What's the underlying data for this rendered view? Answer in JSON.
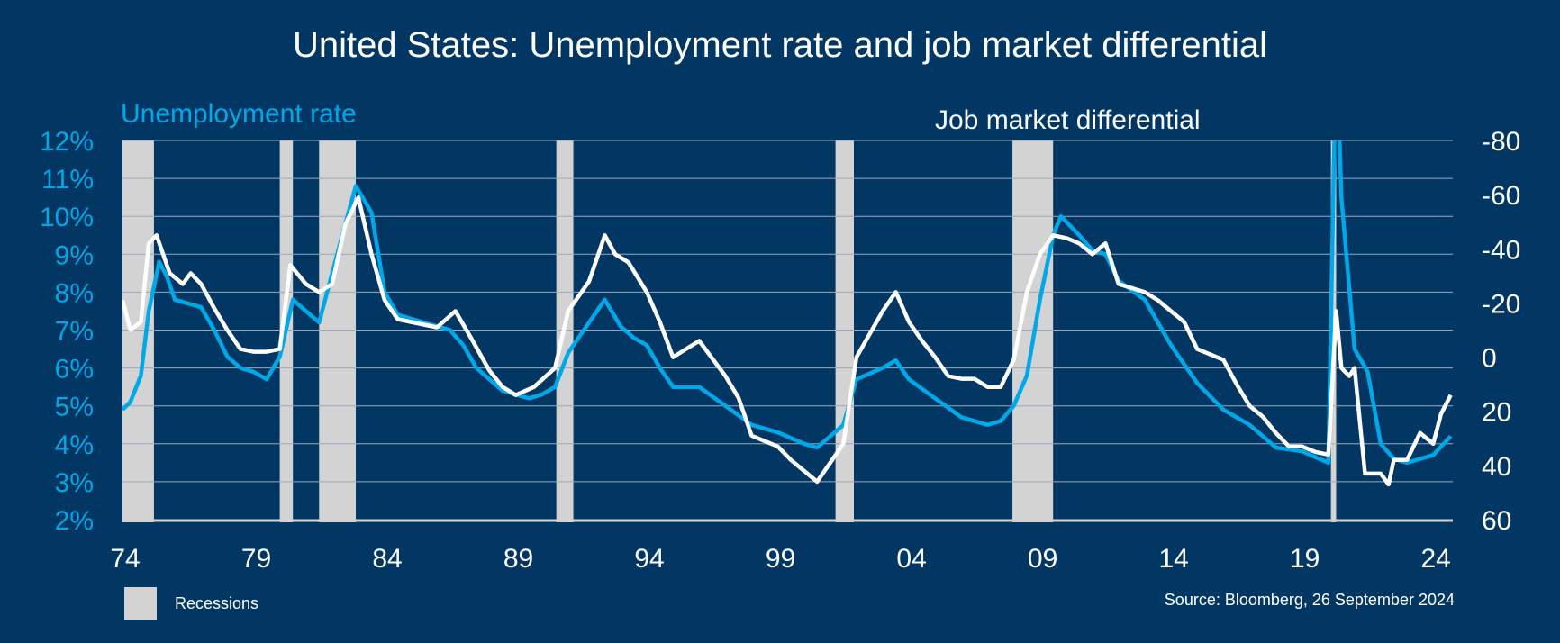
{
  "chart_data": {
    "type": "line",
    "title": "United States: Unemployment rate and job market differential",
    "left_axis": {
      "label": "Unemployment rate",
      "ylim": [
        2,
        12
      ],
      "ticks": [
        "12%",
        "11%",
        "10%",
        "9%",
        "8%",
        "7%",
        "6%",
        "5%",
        "4%",
        "3%",
        "2%"
      ],
      "tick_values": [
        12,
        11,
        10,
        9,
        8,
        7,
        6,
        5,
        4,
        3,
        2
      ]
    },
    "right_axis": {
      "label": "Job market differential",
      "ylim": [
        -80,
        60
      ],
      "inverted": true,
      "ticks": [
        "-80",
        "-60",
        "-40",
        "-20",
        "0",
        "20",
        "40",
        "60"
      ],
      "tick_values": [
        -80,
        -60,
        -40,
        -20,
        0,
        20,
        40,
        60
      ]
    },
    "x_axis": {
      "xlim": [
        1974,
        2024.75
      ],
      "ticks": [
        "74",
        "79",
        "84",
        "89",
        "94",
        "99",
        "04",
        "09",
        "14",
        "19",
        "24"
      ],
      "tick_values": [
        1974,
        1979,
        1984,
        1989,
        1994,
        1999,
        2004,
        2009,
        2014,
        2019,
        2024
      ]
    },
    "grid": true,
    "recessions": [
      [
        1974,
        1975.2
      ],
      [
        1980.0,
        1980.5
      ],
      [
        1981.5,
        1982.9
      ],
      [
        1990.55,
        1991.2
      ],
      [
        2001.2,
        2001.9
      ],
      [
        2007.95,
        2009.5
      ],
      [
        2020.1,
        2020.3
      ]
    ],
    "series": [
      {
        "name": "Unemployment rate",
        "axis": "left",
        "color": "#00a8e8",
        "x": [
          1974.0,
          1974.3,
          1974.7,
          1975.0,
          1975.4,
          1975.7,
          1976.0,
          1976.5,
          1977.0,
          1977.5,
          1978.0,
          1978.5,
          1979.0,
          1979.5,
          1980.0,
          1980.5,
          1981.0,
          1981.5,
          1982.0,
          1982.5,
          1982.9,
          1983.5,
          1984.0,
          1984.5,
          1985.5,
          1986.5,
          1987.0,
          1987.5,
          1988.0,
          1988.5,
          1989.0,
          1989.5,
          1990.0,
          1990.5,
          1991.0,
          1991.5,
          1992.4,
          1993.0,
          1993.5,
          1994.0,
          1994.5,
          1995.0,
          1996.0,
          1997.0,
          1998.0,
          1999.0,
          2000.0,
          2000.5,
          2001.0,
          2001.5,
          2002.0,
          2003.0,
          2003.5,
          2004.0,
          2005.0,
          2006.0,
          2007.0,
          2007.5,
          2008.0,
          2008.5,
          2009.0,
          2009.5,
          2009.8,
          2010.5,
          2011.0,
          2011.5,
          2012.0,
          2013.0,
          2014.0,
          2015.0,
          2016.0,
          2017.0,
          2018.0,
          2019.0,
          2020.0,
          2020.3,
          2020.5,
          2021.0,
          2021.5,
          2022.0,
          2022.5,
          2023.0,
          2023.5,
          2024.0,
          2024.67
        ],
        "values": [
          4.9,
          5.1,
          5.8,
          7.5,
          8.8,
          8.4,
          7.8,
          7.7,
          7.6,
          7.0,
          6.3,
          6.0,
          5.9,
          5.7,
          6.3,
          7.8,
          7.5,
          7.2,
          8.5,
          9.8,
          10.8,
          10.1,
          8.0,
          7.4,
          7.2,
          7.0,
          6.6,
          6.0,
          5.7,
          5.4,
          5.3,
          5.2,
          5.3,
          5.5,
          6.4,
          6.9,
          7.8,
          7.1,
          6.8,
          6.6,
          6.0,
          5.5,
          5.5,
          5.0,
          4.5,
          4.3,
          4.0,
          3.9,
          4.2,
          4.5,
          5.7,
          6.0,
          6.2,
          5.7,
          5.2,
          4.7,
          4.5,
          4.6,
          5.0,
          5.8,
          7.8,
          9.5,
          10.0,
          9.5,
          9.1,
          9.0,
          8.3,
          7.8,
          6.6,
          5.6,
          4.9,
          4.5,
          3.9,
          3.8,
          3.5,
          14.7,
          10.5,
          6.5,
          5.9,
          4.0,
          3.6,
          3.5,
          3.6,
          3.7,
          4.2
        ]
      },
      {
        "name": "Job market differential",
        "axis": "right",
        "color": "#ffffff",
        "x": [
          1974.0,
          1974.3,
          1974.7,
          1975.0,
          1975.3,
          1975.8,
          1976.3,
          1976.6,
          1977.0,
          1977.5,
          1978.0,
          1978.5,
          1979.0,
          1979.5,
          1980.0,
          1980.4,
          1981.0,
          1981.5,
          1982.0,
          1982.5,
          1983.0,
          1983.5,
          1984.0,
          1984.5,
          1985.0,
          1986.0,
          1986.7,
          1987.3,
          1988.0,
          1988.5,
          1989.0,
          1989.7,
          1990.5,
          1991.0,
          1991.8,
          1992.4,
          1992.8,
          1993.3,
          1994.0,
          1994.5,
          1995.0,
          1996.0,
          1997.0,
          1997.5,
          1998.0,
          1999.0,
          1999.5,
          2000.0,
          2000.5,
          2001.0,
          2001.5,
          2002.0,
          2003.0,
          2003.5,
          2004.0,
          2004.5,
          2005.0,
          2005.5,
          2006.0,
          2006.5,
          2007.0,
          2007.5,
          2008.0,
          2008.5,
          2009.0,
          2009.5,
          2010.0,
          2010.5,
          2011.0,
          2011.5,
          2012.0,
          2013.0,
          2013.5,
          2014.0,
          2014.5,
          2015.0,
          2016.0,
          2016.5,
          2017.0,
          2017.5,
          2018.0,
          2018.5,
          2019.0,
          2019.5,
          2020.0,
          2020.3,
          2020.5,
          2020.8,
          2021.0,
          2021.4,
          2022.0,
          2022.3,
          2022.5,
          2023.0,
          2023.5,
          2024.0,
          2024.3,
          2024.67
        ],
        "values": [
          -21,
          -10,
          -13,
          -42,
          -45,
          -31,
          -27,
          -31,
          -27,
          -18,
          -10,
          -3,
          -2,
          -2,
          -3,
          -34,
          -27,
          -24,
          -27,
          -49,
          -59,
          -38,
          -21,
          -14,
          -13,
          -11,
          -17,
          -7,
          5,
          11,
          14,
          11,
          4,
          -17,
          -28,
          -45,
          -38,
          -35,
          -24,
          -13,
          0,
          -6,
          7,
          15,
          29,
          33,
          38,
          42,
          46,
          39,
          32,
          0,
          -17,
          -24,
          -13,
          -6,
          0,
          7,
          8,
          8,
          11,
          11,
          1,
          -24,
          -38,
          -45,
          -44,
          -42,
          -38,
          -42,
          -27,
          -24,
          -21,
          -17,
          -13,
          -3,
          1,
          10,
          18,
          22,
          28,
          33,
          33,
          35,
          36,
          -17,
          4,
          7,
          4,
          43,
          43,
          47,
          38,
          38,
          28,
          32,
          21,
          14
        ]
      }
    ],
    "legend": [
      {
        "label": "Recessions",
        "color": "#d3d3d3"
      }
    ],
    "source": "Source: Bloomberg, 26 September 2024"
  }
}
